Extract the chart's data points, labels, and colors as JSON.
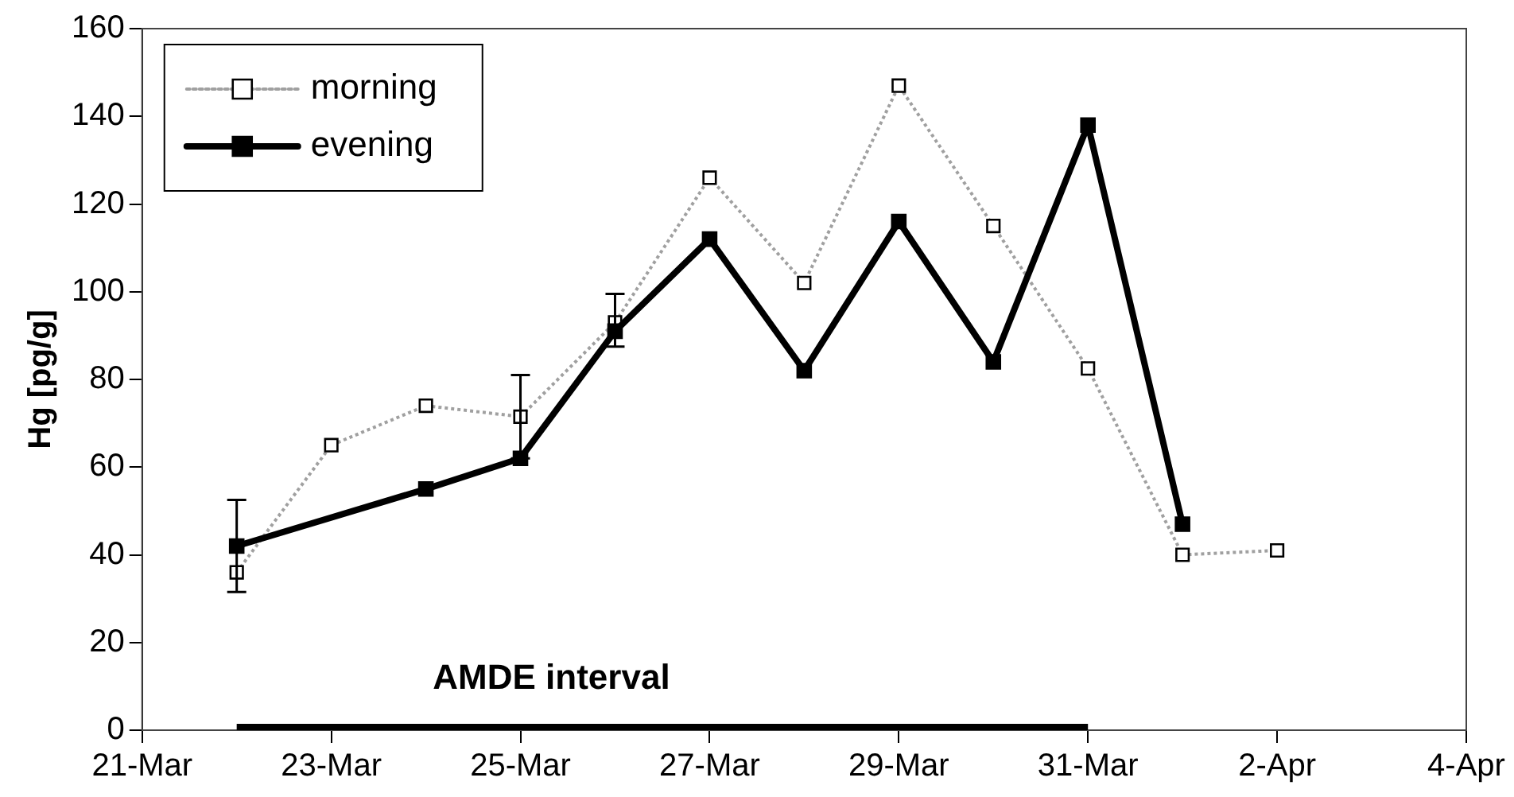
{
  "chart_data": {
    "type": "line",
    "ylabel": "Hg [pg/g]",
    "x": [
      "--03-22",
      "--03-23",
      "--03-24",
      "--03-25",
      "--03-26",
      "--03-27",
      "--03-28",
      "--03-29",
      "--03-30",
      "--03-31",
      "--04-01",
      "--04-02"
    ],
    "series": [
      {
        "name": "morning",
        "color": "#a0a0a0",
        "marker": "square",
        "line_style": "dotted",
        "values": [
          36,
          65,
          74,
          71.5,
          93,
          126,
          102,
          147,
          115,
          82.5,
          40,
          41
        ],
        "errors": [
          null,
          null,
          null,
          9.5,
          [
            87.5,
            99.5
          ],
          null,
          null,
          null,
          null,
          null,
          null,
          null
        ]
      },
      {
        "name": "evening",
        "color": "#000000",
        "marker": "square",
        "line_style": "solid",
        "values": [
          42,
          null,
          55,
          62,
          91,
          112,
          82,
          116,
          84,
          138,
          47,
          null
        ],
        "errors": [
          10.5,
          null,
          null,
          null,
          null,
          null,
          null,
          null,
          null,
          null,
          null,
          null
        ]
      },
      {
        "color": "#000000",
        "marker": "none",
        "line_style": "solid",
        "x": [
          "--03-22",
          "--03-31"
        ],
        "values": [
          0,
          0
        ]
      }
    ],
    "annotations": [
      {
        "text": "AMDE interval",
        "x": "--03-26",
        "y": 0
      }
    ],
    "xlim": [
      "--03-21",
      "--04-04"
    ],
    "xticks": [
      {
        "value": "--03-21",
        "label": "21-Mar"
      },
      {
        "value": "--03-23",
        "label": "23-Mar"
      },
      {
        "value": "--03-25",
        "label": "25-Mar"
      },
      {
        "value": "--03-27",
        "label": "27-Mar"
      },
      {
        "value": "--03-29",
        "label": "29-Mar"
      },
      {
        "value": "--03-31",
        "label": "31-Mar"
      },
      {
        "value": "--04-02",
        "label": "2-Apr"
      },
      {
        "value": "--04-04",
        "label": "4-Apr"
      }
    ],
    "ylim": [
      0,
      160
    ],
    "yticks": [
      0,
      20,
      40,
      60,
      80,
      100,
      120,
      140,
      160
    ],
    "legend": "top left",
    "grid": false
  }
}
